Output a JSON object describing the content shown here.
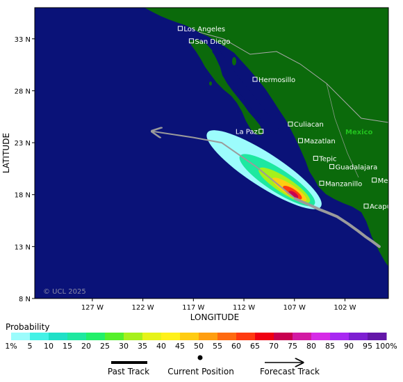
{
  "map": {
    "copyright": "© UCL 2025",
    "x_title": "LONGITUDE",
    "y_title": "LATITUDE",
    "country_label": "Mexico",
    "colors": {
      "ocean": "#0a1278",
      "land": "#0b6a0b",
      "border": "#a9a9a9",
      "track": "#9b9b9b",
      "city_text": "#ffffff",
      "country_text": "#22c21e"
    }
  },
  "chart_data": {
    "type": "heatmap",
    "title": "",
    "xlabel": "LONGITUDE",
    "ylabel": "LATITUDE",
    "xlim": [
      -132.7,
      -97.7
    ],
    "ylim": [
      8,
      36
    ],
    "x_ticks": [
      {
        "value": -127,
        "label": "127 W"
      },
      {
        "value": -122,
        "label": "122 W"
      },
      {
        "value": -117,
        "label": "117 W"
      },
      {
        "value": -112,
        "label": "112 W"
      },
      {
        "value": -107,
        "label": "107 W"
      },
      {
        "value": -102,
        "label": "102 W"
      }
    ],
    "y_ticks": [
      {
        "value": 33,
        "label": "33 N"
      },
      {
        "value": 28,
        "label": "28 N"
      },
      {
        "value": 23,
        "label": "23 N"
      },
      {
        "value": 18,
        "label": "18 N"
      },
      {
        "value": 13,
        "label": "13 N"
      },
      {
        "value": 8,
        "label": "8 N"
      }
    ],
    "cities": [
      {
        "name": "Los Angeles",
        "lon": -118.3,
        "lat": 34.0
      },
      {
        "name": "San Diego",
        "lon": -117.2,
        "lat": 32.8
      },
      {
        "name": "Hermosillo",
        "lon": -110.9,
        "lat": 29.1
      },
      {
        "name": "Culiacan",
        "lon": -107.4,
        "lat": 24.8
      },
      {
        "name": "La Paz",
        "lon": -110.3,
        "lat": 24.1
      },
      {
        "name": "Mazatlan",
        "lon": -106.4,
        "lat": 23.2
      },
      {
        "name": "Tepic",
        "lon": -104.9,
        "lat": 21.5
      },
      {
        "name": "Guadalajara",
        "lon": -103.3,
        "lat": 20.7
      },
      {
        "name": "Mexico City",
        "lon": -99.1,
        "lat": 19.4
      },
      {
        "name": "Manzanillo",
        "lon": -104.3,
        "lat": 19.1
      },
      {
        "name": "Acapulco",
        "lon": -99.9,
        "lat": 16.9
      }
    ],
    "past_track": [
      {
        "lon": -98.6,
        "lat": 13.0
      },
      {
        "lon": -99.3,
        "lat": 13.5
      },
      {
        "lon": -99.9,
        "lat": 13.9
      },
      {
        "lon": -100.7,
        "lat": 14.5
      },
      {
        "lon": -101.7,
        "lat": 15.2
      },
      {
        "lon": -102.8,
        "lat": 15.9
      },
      {
        "lon": -103.8,
        "lat": 16.3
      },
      {
        "lon": -104.6,
        "lat": 16.6
      },
      {
        "lon": -105.5,
        "lat": 17.0
      },
      {
        "lon": -106.2,
        "lat": 17.3
      },
      {
        "lon": -106.9,
        "lat": 17.6
      }
    ],
    "current_position": {
      "lon": -106.9,
      "lat": 17.6
    },
    "forecast_track": [
      {
        "lon": -106.9,
        "lat": 17.6
      },
      {
        "lon": -110.8,
        "lat": 20.7
      },
      {
        "lon": -114.2,
        "lat": 23.0
      },
      {
        "lon": -117.0,
        "lat": 23.5
      },
      {
        "lon": -121.1,
        "lat": 24.1
      }
    ],
    "probability_contours": [
      {
        "pct": 1,
        "center": {
          "lon": -110.0,
          "lat": 20.4
        },
        "rx": 6.7,
        "ry": 1.6,
        "angle_deg": -33
      },
      {
        "pct": 15,
        "center": {
          "lon": -108.7,
          "lat": 19.4
        },
        "rx": 4.4,
        "ry": 1.1,
        "angle_deg": -33
      },
      {
        "pct": 30,
        "center": {
          "lon": -108.0,
          "lat": 18.9
        },
        "rx": 3.0,
        "ry": 0.75,
        "angle_deg": -33
      },
      {
        "pct": 45,
        "center": {
          "lon": -107.5,
          "lat": 18.5
        },
        "rx": 2.0,
        "ry": 0.5,
        "angle_deg": -33
      },
      {
        "pct": 60,
        "center": {
          "lon": -107.2,
          "lat": 18.2
        },
        "rx": 1.1,
        "ry": 0.35,
        "angle_deg": -33
      },
      {
        "pct": 70,
        "center": {
          "lon": -107.1,
          "lat": 18.0
        },
        "rx": 0.55,
        "ry": 0.25,
        "angle_deg": -33
      }
    ]
  },
  "legend": {
    "title": "Probability",
    "tick_labels": [
      "1%",
      "5",
      "10",
      "15",
      "20",
      "25",
      "30",
      "35",
      "40",
      "45",
      "50",
      "55",
      "60",
      "65",
      "70",
      "75",
      "80",
      "85",
      "90",
      "95",
      "100%"
    ],
    "bins": [
      {
        "pct": 1,
        "color": "#9cfcfc"
      },
      {
        "pct": 5,
        "color": "#43f2e6"
      },
      {
        "pct": 10,
        "color": "#1fe0c7"
      },
      {
        "pct": 15,
        "color": "#1ee8a0"
      },
      {
        "pct": 20,
        "color": "#22f06a"
      },
      {
        "pct": 25,
        "color": "#55f02b"
      },
      {
        "pct": 30,
        "color": "#a6f01c"
      },
      {
        "pct": 35,
        "color": "#e6f319"
      },
      {
        "pct": 40,
        "color": "#fff11a"
      },
      {
        "pct": 45,
        "color": "#ffcc12"
      },
      {
        "pct": 50,
        "color": "#ff9e10"
      },
      {
        "pct": 55,
        "color": "#ff6a10"
      },
      {
        "pct": 60,
        "color": "#ff3a10"
      },
      {
        "pct": 65,
        "color": "#f00012"
      },
      {
        "pct": 70,
        "color": "#c8004f"
      },
      {
        "pct": 75,
        "color": "#d21aa3"
      },
      {
        "pct": 80,
        "color": "#d62be7"
      },
      {
        "pct": 85,
        "color": "#a829f2"
      },
      {
        "pct": 90,
        "color": "#7d1fd2"
      },
      {
        "pct": 95,
        "color": "#6316a8"
      }
    ],
    "key": {
      "past_track": "Past Track",
      "current_position": "Current Position",
      "forecast_track": "Forecast Track"
    }
  }
}
